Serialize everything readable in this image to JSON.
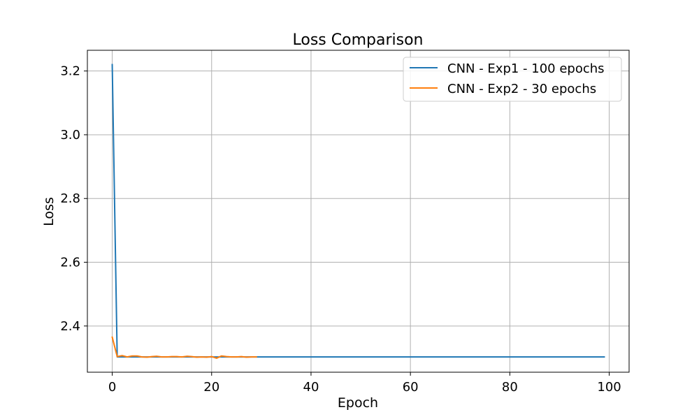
{
  "chart_data": {
    "type": "line",
    "title": "Loss Comparison",
    "xlabel": "Epoch",
    "ylabel": "Loss",
    "xlim": [
      -5,
      104
    ],
    "ylim": [
      2.255,
      3.265
    ],
    "x_ticks": [
      0,
      20,
      40,
      60,
      80,
      100
    ],
    "y_ticks": [
      2.4,
      2.6,
      2.8,
      3.0,
      3.2
    ],
    "x_tick_labels": [
      "0",
      "20",
      "40",
      "60",
      "80",
      "100"
    ],
    "y_tick_labels": [
      "2.4",
      "2.6",
      "2.8",
      "3.0",
      "3.2"
    ],
    "grid": true,
    "legend_position": "top-right",
    "series": [
      {
        "name": "CNN - Exp1 - 100 epochs",
        "color": "#1f77b4",
        "values": [
          3.22,
          2.303,
          2.303,
          2.303,
          2.303,
          2.303,
          2.303,
          2.303,
          2.303,
          2.303,
          2.303,
          2.303,
          2.303,
          2.303,
          2.303,
          2.303,
          2.303,
          2.303,
          2.303,
          2.303,
          2.303,
          2.303,
          2.303,
          2.303,
          2.303,
          2.303,
          2.303,
          2.303,
          2.303,
          2.303,
          2.303,
          2.303,
          2.303,
          2.303,
          2.303,
          2.303,
          2.303,
          2.303,
          2.303,
          2.303,
          2.303,
          2.303,
          2.303,
          2.303,
          2.303,
          2.303,
          2.303,
          2.303,
          2.303,
          2.303,
          2.303,
          2.303,
          2.303,
          2.303,
          2.303,
          2.303,
          2.303,
          2.303,
          2.303,
          2.303,
          2.303,
          2.303,
          2.303,
          2.303,
          2.303,
          2.303,
          2.303,
          2.303,
          2.303,
          2.303,
          2.303,
          2.303,
          2.303,
          2.303,
          2.303,
          2.303,
          2.303,
          2.303,
          2.303,
          2.303,
          2.303,
          2.303,
          2.303,
          2.303,
          2.303,
          2.303,
          2.303,
          2.303,
          2.303,
          2.303,
          2.303,
          2.303,
          2.303,
          2.303,
          2.303,
          2.303,
          2.303,
          2.303,
          2.303,
          2.303
        ]
      },
      {
        "name": "CNN - Exp2 - 30 epochs",
        "color": "#ff7f0e",
        "values": [
          2.365,
          2.304,
          2.307,
          2.303,
          2.306,
          2.306,
          2.303,
          2.302,
          2.304,
          2.305,
          2.303,
          2.303,
          2.304,
          2.304,
          2.303,
          2.305,
          2.304,
          2.302,
          2.303,
          2.302,
          2.304,
          2.299,
          2.306,
          2.304,
          2.303,
          2.303,
          2.304,
          2.302,
          2.303,
          2.303
        ]
      }
    ]
  }
}
